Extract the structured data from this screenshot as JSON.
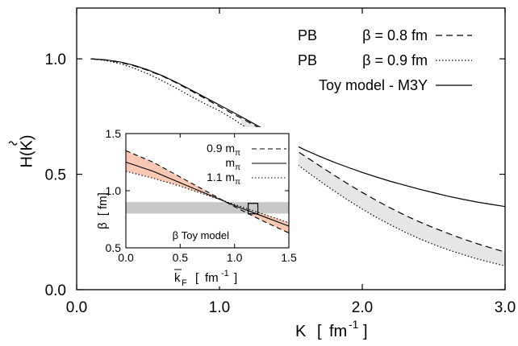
{
  "chart_data": [
    {
      "type": "line",
      "xlabel": "K",
      "xunit": "fm",
      "xunit_exp": "-1",
      "ylabel": "H(K)",
      "xlim": [
        0.0,
        3.0
      ],
      "ylim": [
        0.0,
        1.22
      ],
      "xticks": [
        0.0,
        1.0,
        2.0,
        3.0
      ],
      "xtick_labels": [
        "0.0",
        "1.0",
        "2.0",
        "3.0"
      ],
      "yticks": [
        0.0,
        0.5,
        1.0
      ],
      "ytick_labels": [
        "0.0",
        "0.5",
        "1.0"
      ],
      "grid": false,
      "legend_position": "top-right",
      "x": [
        0.1,
        0.2,
        0.3,
        0.4,
        0.5,
        0.6,
        0.7,
        0.8,
        0.9,
        1.0,
        1.1,
        1.2,
        1.3,
        1.4,
        1.5,
        1.6,
        1.7,
        1.8,
        1.9,
        2.0,
        2.1,
        2.2,
        2.3,
        2.4,
        2.5,
        2.6,
        2.7,
        2.8,
        2.9,
        3.0
      ],
      "series": [
        {
          "name": "PB",
          "param": "β = 0.8 fm",
          "style": "dashed",
          "values": [
            1.0,
            0.995,
            0.985,
            0.97,
            0.95,
            0.925,
            0.895,
            0.862,
            0.828,
            0.793,
            0.76,
            0.727,
            0.693,
            0.657,
            0.618,
            0.578,
            0.537,
            0.497,
            0.458,
            0.421,
            0.386,
            0.353,
            0.322,
            0.294,
            0.268,
            0.244,
            0.221,
            0.2,
            0.181,
            0.163
          ]
        },
        {
          "name": "PB",
          "param": "β = 0.9 fm",
          "style": "dotted",
          "values": [
            1.0,
            0.993,
            0.98,
            0.96,
            0.935,
            0.905,
            0.872,
            0.838,
            0.805,
            0.775,
            0.738,
            0.697,
            0.654,
            0.609,
            0.563,
            0.517,
            0.472,
            0.429,
            0.388,
            0.349,
            0.313,
            0.28,
            0.249,
            0.221,
            0.196,
            0.173,
            0.153,
            0.134,
            0.118,
            0.103
          ]
        },
        {
          "name": "Toy model - M3Y",
          "param": "",
          "style": "solid",
          "values": [
            1.0,
            0.996,
            0.987,
            0.972,
            0.952,
            0.927,
            0.898,
            0.866,
            0.833,
            0.8,
            0.767,
            0.733,
            0.699,
            0.666,
            0.635,
            0.605,
            0.578,
            0.553,
            0.53,
            0.508,
            0.488,
            0.469,
            0.452,
            0.435,
            0.42,
            0.405,
            0.392,
            0.38,
            0.37,
            0.36
          ]
        }
      ],
      "band": {
        "between": [
          "PB β = 0.8 fm",
          "PB β = 0.9 fm"
        ],
        "x_from": 1.15,
        "color": "#e6e6e6"
      }
    },
    {
      "type": "line",
      "role": "inset",
      "xlabel": "k",
      "xlabel_sub": "F",
      "xunit": "fm",
      "xunit_exp": "-1",
      "ylabel": "β",
      "yunit": "fm",
      "xlim": [
        0.0,
        1.5
      ],
      "ylim": [
        0.5,
        1.5
      ],
      "xticks": [
        0.0,
        0.5,
        1.0,
        1.5
      ],
      "xtick_labels": [
        "0.0",
        "0.5",
        "1.0",
        "1.5"
      ],
      "yticks": [
        0.5,
        1.0,
        1.5
      ],
      "ytick_labels": [
        "0.5",
        "1.0",
        "1.5"
      ],
      "legend_position": "top-right",
      "x": [
        0.0,
        0.25,
        0.5,
        0.75,
        1.0,
        1.25,
        1.5
      ],
      "series": [
        {
          "name": "0.9 m",
          "name_sub": "π",
          "style": "dashed",
          "values": [
            1.35,
            1.25,
            1.12,
            0.99,
            0.86,
            0.74,
            0.63
          ]
        },
        {
          "name": "m",
          "name_sub": "π",
          "style": "solid",
          "values": [
            1.25,
            1.17,
            1.07,
            0.97,
            0.87,
            0.78,
            0.69
          ]
        },
        {
          "name": "1.1 m",
          "name_sub": "π",
          "style": "dotted",
          "values": [
            1.17,
            1.11,
            1.04,
            0.96,
            0.88,
            0.8,
            0.72
          ]
        }
      ],
      "band_color": "#f7c9b5",
      "horizontal_band": {
        "label": "β Toy model",
        "y_range": [
          0.8,
          0.9
        ],
        "color": "#c8c8c8"
      },
      "marker_box": {
        "x": 1.17,
        "y": 0.84
      }
    }
  ]
}
